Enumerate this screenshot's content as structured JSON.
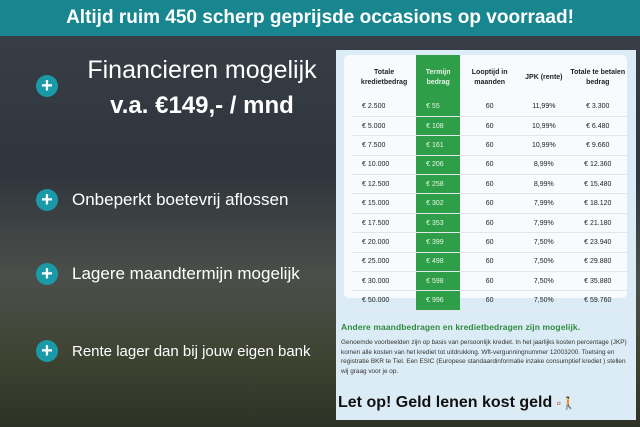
{
  "banner": "Altijd ruim 450 scherp geprijsde occasions op voorraad!",
  "financing": {
    "title": "Financieren mogelijk",
    "price": "v.a. €149,- / mnd"
  },
  "bullets": [
    "Onbeperkt boetevrij aflossen",
    "Lagere maandtermijn mogelijk",
    "Rente lager dan bij jouw eigen bank"
  ],
  "table": {
    "headers": [
      "Totale kredietbedrag",
      "Termijn bedrag",
      "Looptijd in maanden",
      "JPK (rente)",
      "Totale te betalen bedrag"
    ],
    "rows": [
      [
        "€ 2.500",
        "€ 55",
        "60",
        "11,99%",
        "€ 3.300"
      ],
      [
        "€ 5.000",
        "€ 108",
        "60",
        "10,99%",
        "€ 6.480"
      ],
      [
        "€ 7.500",
        "€ 161",
        "60",
        "10,99%",
        "€ 9.660"
      ],
      [
        "€ 10.000",
        "€ 206",
        "60",
        "8,99%",
        "€ 12.360"
      ],
      [
        "€ 12.500",
        "€ 258",
        "60",
        "8,99%",
        "€ 15.480"
      ],
      [
        "€ 15.000",
        "€ 302",
        "60",
        "7,99%",
        "€ 18.120"
      ],
      [
        "€ 17.500",
        "€ 353",
        "60",
        "7,99%",
        "€ 21.180"
      ],
      [
        "€ 20.000",
        "€ 399",
        "60",
        "7,50%",
        "€ 23.940"
      ],
      [
        "€ 25.000",
        "€ 498",
        "60",
        "7,50%",
        "€ 29.880"
      ],
      [
        "€ 30.000",
        "€ 598",
        "60",
        "7,50%",
        "€ 35.880"
      ],
      [
        "€ 50.000",
        "€ 996",
        "60",
        "7,50%",
        "€ 59.760"
      ]
    ]
  },
  "note": "Andere maandbedragen en kredietbedragen zijn mogelijk.",
  "disclaimer": "Genoemde voorbeelden zijn op basis van persoonlijk krediet. In het jaarlijks kosten percentage (JKP) komen alle kosten van het krediet tot uitdrukking. Wft-vergunningnummer 12003200. Toetsing en registratie BKR te Tiel. Een ESIC (Europese standaardinformatie inzake consumptief krediet ) stellen wij graag voor je op.",
  "warning": "Let op! Geld lenen kost geld",
  "colors": {
    "banner": "#17868f",
    "green": "#2e9e48"
  }
}
